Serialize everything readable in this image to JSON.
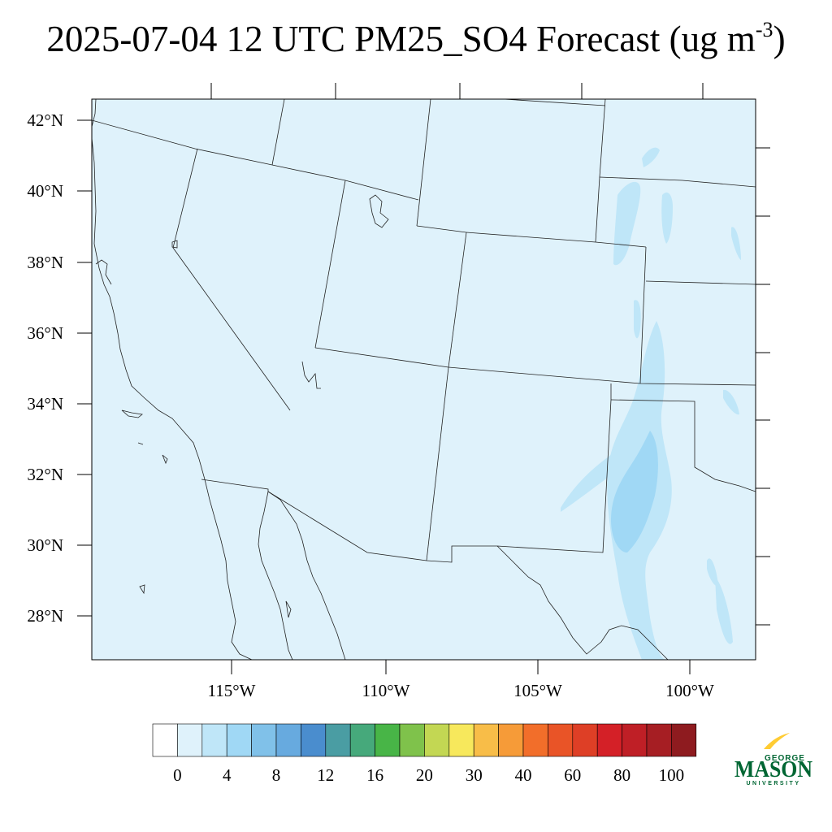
{
  "title": {
    "main": "2025-07-04 12 UTC PM25_SO4 Forecast (ug m",
    "exponent": "-3",
    "close": ")"
  },
  "map": {
    "lat_labels": [
      "42°N",
      "40°N",
      "38°N",
      "36°N",
      "34°N",
      "32°N",
      "30°N",
      "28°N"
    ],
    "lon_labels": [
      "115°W",
      "110°W",
      "105°W",
      "100°W"
    ],
    "background_color": "#dff2fb"
  },
  "colorbar": {
    "colors": [
      "#ffffff",
      "#dff2fb",
      "#bfe6f8",
      "#a0d8f5",
      "#80c1e9",
      "#67aadf",
      "#4a8dce",
      "#4a9da3",
      "#46a97b",
      "#48b547",
      "#7fc24b",
      "#c3d753",
      "#f7e85c",
      "#f8bd48",
      "#f69b38",
      "#f26e2a",
      "#e95427",
      "#de3f26",
      "#d42027",
      "#bf1f26",
      "#a61e23",
      "#8e1b1f"
    ],
    "labels": [
      "0",
      "4",
      "8",
      "12",
      "16",
      "20",
      "30",
      "40",
      "60",
      "80",
      "100"
    ]
  },
  "logo": {
    "top": "GEORGE",
    "main": "MASON",
    "bottom": "UNIVERSITY",
    "green": "#006633",
    "gold": "#ffcc33"
  }
}
